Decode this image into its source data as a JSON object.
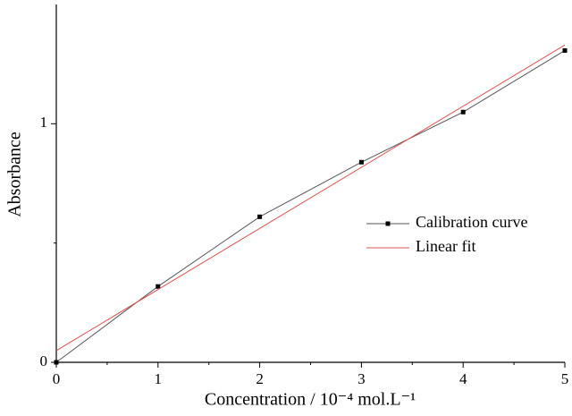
{
  "chart_data": {
    "type": "line",
    "xlabel": "Concentration / 10⁻⁴ mol.L⁻¹",
    "ylabel": "Absorbance",
    "series": [
      {
        "name": "Calibration curve",
        "color": "#555555",
        "markers": true,
        "x": [
          0,
          1,
          2,
          3,
          4,
          5
        ],
        "values": [
          0,
          0.318,
          0.61,
          0.839,
          1.049,
          1.307
        ]
      },
      {
        "name": "Linear fit",
        "color": "#e05050",
        "markers": false,
        "x": [
          0,
          5
        ],
        "values": [
          0.049,
          1.33
        ]
      }
    ],
    "xlim": [
      0,
      5
    ],
    "xticks": [
      0,
      1,
      2,
      3,
      4,
      5
    ],
    "xminorticks": [
      0.5,
      1.5,
      2.5,
      3.5,
      4.5
    ],
    "ylim": [
      0,
      1.5
    ],
    "yticks": [
      0,
      1
    ],
    "yminorticks": [
      0.5
    ],
    "legend": "right"
  }
}
